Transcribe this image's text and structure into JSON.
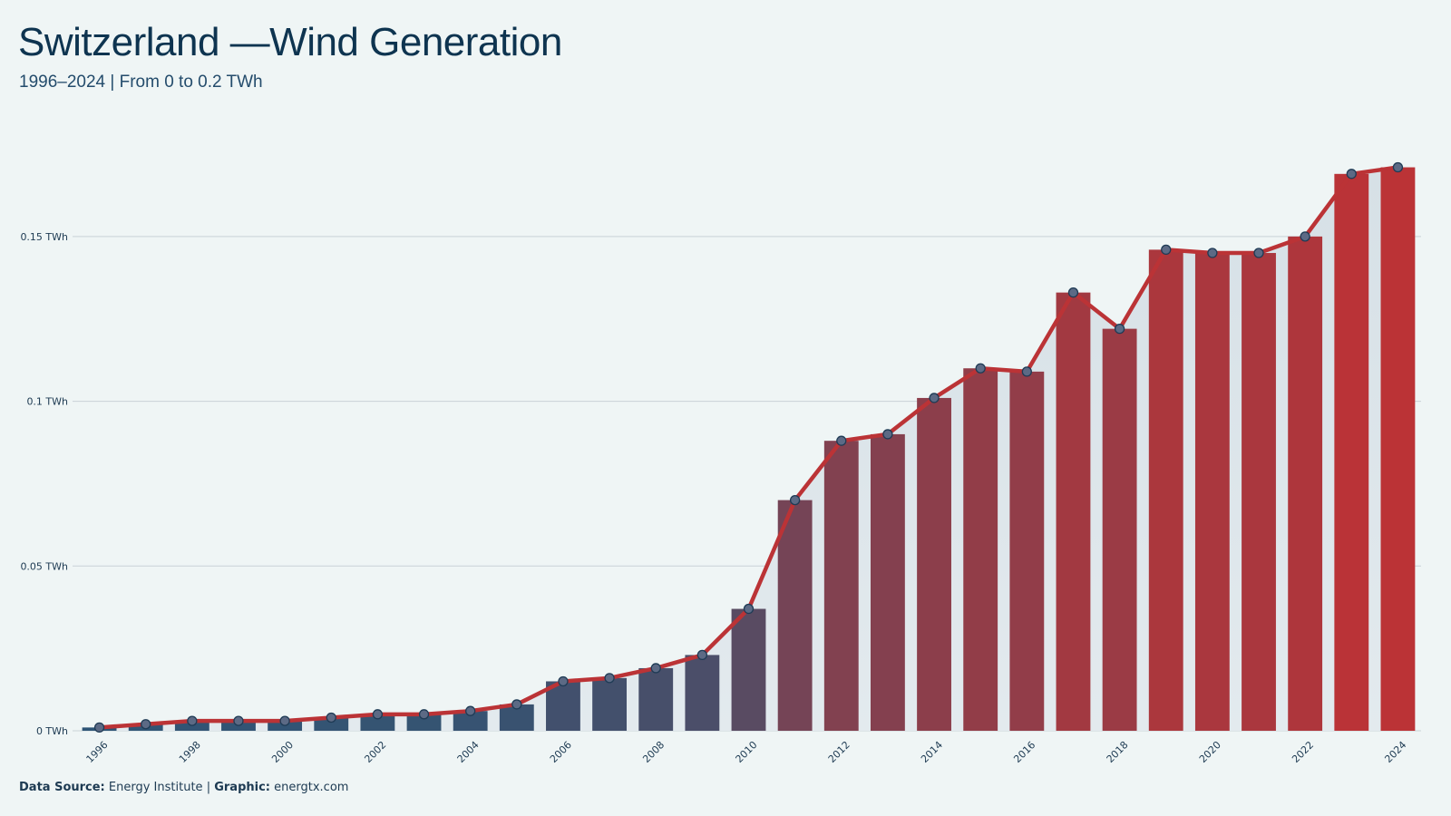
{
  "header": {
    "title": "Switzerland —Wind Generation",
    "subtitle": "1996–2024 | From 0 to 0.2 TWh"
  },
  "footer": {
    "source_label": "Data Source:",
    "source_value": "Energy Institute",
    "separator": "|",
    "graphic_label": "Graphic:",
    "graphic_value": "energtx.com"
  },
  "colors": {
    "background": "#eff5f5",
    "title": "#0e3450",
    "bar_start": "#2b5677",
    "bar_end": "#bb3336",
    "line": "#bb3336",
    "area": "#dde5ea",
    "marker_fill": "#5c6a85",
    "marker_stroke": "#1f3b55"
  },
  "chart_data": {
    "type": "bar",
    "title": "Switzerland —Wind Generation",
    "subtitle": "1996–2024 | From 0 to 0.2 TWh",
    "xlabel": "",
    "ylabel": "",
    "unit": "TWh",
    "ylim": [
      0,
      0.175
    ],
    "yticks": [
      0,
      0.05,
      0.1,
      0.15
    ],
    "ytick_labels": [
      "0 TWh",
      "0.05 TWh",
      "0.1 TWh",
      "0.15 TWh"
    ],
    "xtick_labels": [
      "1996",
      "1998",
      "2000",
      "2002",
      "2004",
      "2006",
      "2008",
      "2010",
      "2012",
      "2014",
      "2016",
      "2018",
      "2020",
      "2022",
      "2024"
    ],
    "grid": true,
    "legend": "none",
    "overlay": "line with markers and shaded area",
    "categories": [
      "1996",
      "1997",
      "1998",
      "1999",
      "2000",
      "2001",
      "2002",
      "2003",
      "2004",
      "2005",
      "2006",
      "2007",
      "2008",
      "2009",
      "2010",
      "2011",
      "2012",
      "2013",
      "2014",
      "2015",
      "2016",
      "2017",
      "2018",
      "2019",
      "2020",
      "2021",
      "2022",
      "2023",
      "2024"
    ],
    "values": [
      0.001,
      0.002,
      0.003,
      0.003,
      0.003,
      0.004,
      0.005,
      0.005,
      0.006,
      0.008,
      0.015,
      0.016,
      0.019,
      0.023,
      0.037,
      0.07,
      0.088,
      0.09,
      0.101,
      0.11,
      0.109,
      0.133,
      0.122,
      0.146,
      0.145,
      0.145,
      0.15,
      0.169,
      0.171
    ]
  }
}
